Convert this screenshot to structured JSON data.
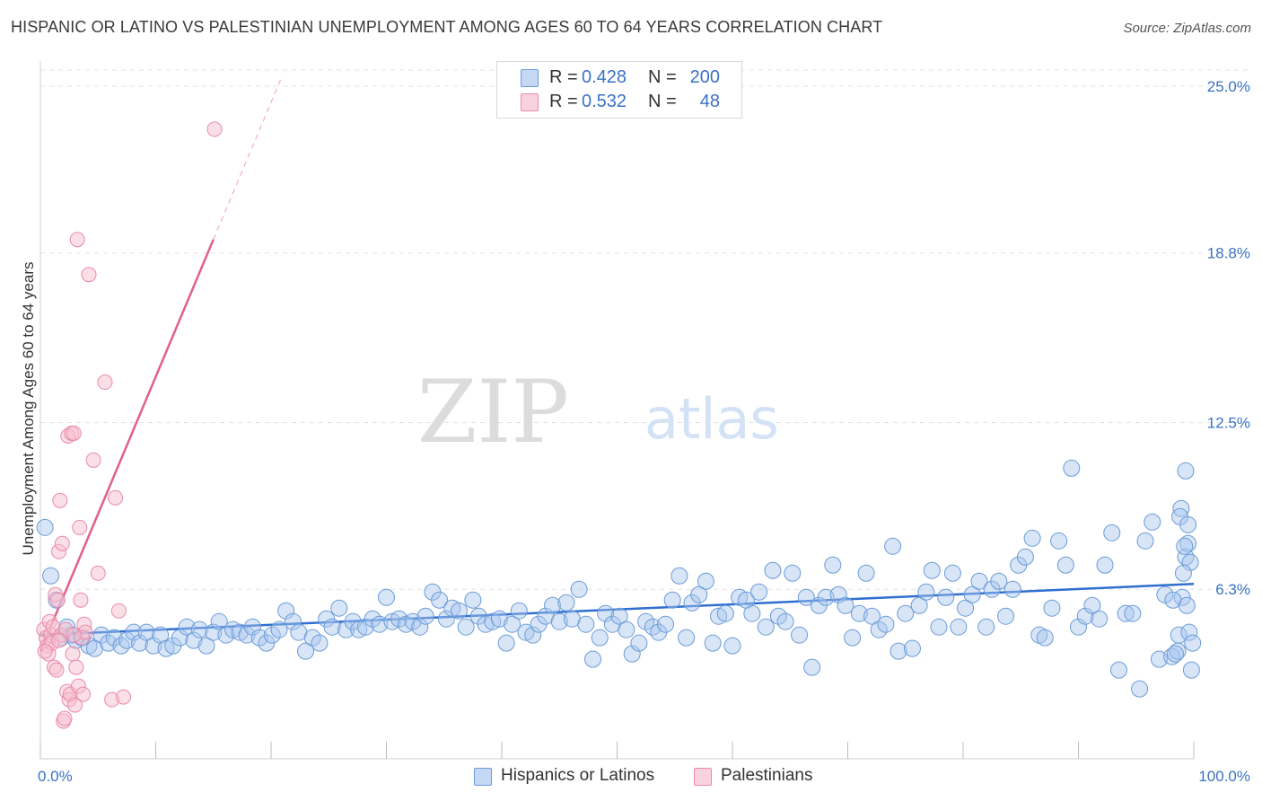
{
  "header": {
    "title": "HISPANIC OR LATINO VS PALESTINIAN UNEMPLOYMENT AMONG AGES 60 TO 64 YEARS CORRELATION CHART",
    "source": "Source: ZipAtlas.com"
  },
  "watermark": {
    "zip": "ZIP",
    "atlas": "atlas"
  },
  "legend_top": {
    "rows": [
      {
        "r_label": "R =",
        "r_value": "0.428",
        "n_label": "N =",
        "n_value": "200"
      },
      {
        "r_label": "R =",
        "r_value": "0.532",
        "n_label": "N =",
        "n_value": "48"
      }
    ]
  },
  "legend_bottom": {
    "items": [
      "Hispanics or Latinos",
      "Palestinians"
    ]
  },
  "colors": {
    "blue_fill": "#a9c6ee",
    "blue_stroke": "#6a9bd8",
    "blue_line": "#2f6fd0",
    "pink_fill": "#f6bfd0",
    "pink_stroke": "#ea8aa8",
    "pink_line": "#e0608b",
    "axis_text": "#3b72c4",
    "grid": "#e3e3e3"
  },
  "chart_data": {
    "type": "scatter",
    "title": "HISPANIC OR LATINO VS PALESTINIAN UNEMPLOYMENT AMONG AGES 60 TO 64 YEARS CORRELATION CHART",
    "xlabel": "",
    "ylabel": "Unemployment Among Ages 60 to 64 years",
    "xlim": [
      0,
      100
    ],
    "ylim": [
      0,
      25.8
    ],
    "x_tick_labels": [
      "0.0%",
      "100.0%"
    ],
    "y_ticks": [
      6.3,
      12.5,
      18.8,
      25.0
    ],
    "y_tick_labels": [
      "6.3%",
      "12.5%",
      "18.8%",
      "25.0%"
    ],
    "grid": "horizontal dashed",
    "legend": "bottom-center",
    "series": [
      {
        "name": "Hispanics or Latinos",
        "color": "#a9c6ee",
        "r": 0.428,
        "n": 200,
        "trend": {
          "x": [
            0,
            100
          ],
          "y": [
            4.6,
            6.5
          ]
        },
        "points": [
          [
            0.4,
            8.6
          ],
          [
            0.9,
            6.8
          ],
          [
            1.4,
            5.9
          ],
          [
            1.8,
            4.5
          ],
          [
            2.3,
            4.9
          ],
          [
            2.7,
            4.6
          ],
          [
            3.1,
            4.4
          ],
          [
            3.6,
            4.5
          ],
          [
            4.2,
            4.2
          ],
          [
            4.7,
            4.1
          ],
          [
            5.3,
            4.6
          ],
          [
            5.9,
            4.3
          ],
          [
            6.4,
            4.5
          ],
          [
            7.0,
            4.2
          ],
          [
            7.5,
            4.4
          ],
          [
            8.1,
            4.7
          ],
          [
            8.6,
            4.3
          ],
          [
            9.2,
            4.7
          ],
          [
            9.8,
            4.2
          ],
          [
            10.4,
            4.6
          ],
          [
            10.9,
            4.1
          ],
          [
            11.5,
            4.2
          ],
          [
            12.1,
            4.5
          ],
          [
            12.7,
            4.9
          ],
          [
            13.3,
            4.4
          ],
          [
            13.8,
            4.8
          ],
          [
            14.4,
            4.2
          ],
          [
            15.0,
            4.7
          ],
          [
            15.5,
            5.1
          ],
          [
            16.1,
            4.6
          ],
          [
            16.7,
            4.8
          ],
          [
            17.3,
            4.7
          ],
          [
            17.9,
            4.6
          ],
          [
            18.4,
            4.9
          ],
          [
            19.0,
            4.5
          ],
          [
            19.6,
            4.3
          ],
          [
            20.1,
            4.6
          ],
          [
            20.7,
            4.8
          ],
          [
            21.3,
            5.5
          ],
          [
            21.9,
            5.1
          ],
          [
            22.4,
            4.7
          ],
          [
            23.0,
            4.0
          ],
          [
            23.6,
            4.5
          ],
          [
            24.2,
            4.3
          ],
          [
            24.8,
            5.2
          ],
          [
            25.3,
            4.9
          ],
          [
            25.9,
            5.6
          ],
          [
            26.5,
            4.8
          ],
          [
            27.1,
            5.1
          ],
          [
            27.6,
            4.8
          ],
          [
            28.2,
            4.9
          ],
          [
            28.8,
            5.2
          ],
          [
            29.4,
            5.0
          ],
          [
            30.0,
            6.0
          ],
          [
            30.5,
            5.1
          ],
          [
            31.1,
            5.2
          ],
          [
            31.7,
            5.0
          ],
          [
            32.3,
            5.1
          ],
          [
            32.9,
            4.9
          ],
          [
            33.4,
            5.3
          ],
          [
            34.0,
            6.2
          ],
          [
            34.6,
            5.9
          ],
          [
            35.2,
            5.2
          ],
          [
            35.7,
            5.6
          ],
          [
            36.3,
            5.5
          ],
          [
            36.9,
            4.9
          ],
          [
            37.5,
            5.9
          ],
          [
            38.0,
            5.3
          ],
          [
            38.6,
            5.0
          ],
          [
            39.2,
            5.1
          ],
          [
            39.8,
            5.2
          ],
          [
            40.4,
            4.3
          ],
          [
            40.9,
            5.0
          ],
          [
            41.5,
            5.5
          ],
          [
            42.1,
            4.7
          ],
          [
            42.7,
            4.6
          ],
          [
            43.2,
            5.0
          ],
          [
            43.8,
            5.3
          ],
          [
            44.4,
            5.7
          ],
          [
            45.0,
            5.1
          ],
          [
            45.6,
            5.8
          ],
          [
            46.1,
            5.2
          ],
          [
            46.7,
            6.3
          ],
          [
            47.3,
            5.0
          ],
          [
            47.9,
            3.7
          ],
          [
            48.5,
            4.5
          ],
          [
            49.0,
            5.4
          ],
          [
            49.6,
            5.0
          ],
          [
            50.2,
            5.3
          ],
          [
            50.8,
            4.8
          ],
          [
            51.3,
            3.9
          ],
          [
            51.9,
            4.3
          ],
          [
            52.5,
            5.1
          ],
          [
            53.1,
            4.9
          ],
          [
            53.6,
            4.7
          ],
          [
            54.2,
            5.0
          ],
          [
            54.8,
            5.9
          ],
          [
            55.4,
            6.8
          ],
          [
            56.0,
            4.5
          ],
          [
            56.5,
            5.8
          ],
          [
            57.1,
            6.1
          ],
          [
            57.7,
            6.6
          ],
          [
            58.3,
            4.3
          ],
          [
            58.8,
            5.3
          ],
          [
            59.4,
            5.4
          ],
          [
            60.0,
            4.2
          ],
          [
            60.6,
            6.0
          ],
          [
            61.2,
            5.9
          ],
          [
            61.7,
            5.4
          ],
          [
            62.3,
            6.2
          ],
          [
            62.9,
            4.9
          ],
          [
            63.5,
            7.0
          ],
          [
            64.0,
            5.3
          ],
          [
            64.6,
            5.1
          ],
          [
            65.2,
            6.9
          ],
          [
            65.8,
            4.6
          ],
          [
            66.4,
            6.0
          ],
          [
            66.9,
            3.4
          ],
          [
            67.5,
            5.7
          ],
          [
            68.1,
            6.0
          ],
          [
            68.7,
            7.2
          ],
          [
            69.2,
            6.1
          ],
          [
            69.8,
            5.7
          ],
          [
            70.4,
            4.5
          ],
          [
            71.0,
            5.4
          ],
          [
            71.6,
            6.9
          ],
          [
            72.1,
            5.3
          ],
          [
            72.7,
            4.8
          ],
          [
            73.3,
            5.0
          ],
          [
            73.9,
            7.9
          ],
          [
            74.4,
            4.0
          ],
          [
            75.0,
            5.4
          ],
          [
            75.6,
            4.1
          ],
          [
            76.2,
            5.7
          ],
          [
            76.8,
            6.2
          ],
          [
            77.3,
            7.0
          ],
          [
            77.9,
            4.9
          ],
          [
            78.5,
            6.0
          ],
          [
            79.1,
            6.9
          ],
          [
            79.6,
            4.9
          ],
          [
            80.2,
            5.6
          ],
          [
            80.8,
            6.1
          ],
          [
            81.4,
            6.6
          ],
          [
            82.0,
            4.9
          ],
          [
            82.5,
            6.3
          ],
          [
            83.1,
            6.6
          ],
          [
            83.7,
            5.3
          ],
          [
            84.3,
            6.3
          ],
          [
            84.8,
            7.2
          ],
          [
            85.4,
            7.5
          ],
          [
            86.0,
            8.2
          ],
          [
            86.6,
            4.6
          ],
          [
            87.1,
            4.5
          ],
          [
            87.7,
            5.6
          ],
          [
            88.3,
            8.1
          ],
          [
            88.9,
            7.2
          ],
          [
            89.4,
            10.8
          ],
          [
            90.0,
            4.9
          ],
          [
            90.6,
            5.3
          ],
          [
            91.2,
            5.7
          ],
          [
            91.8,
            5.2
          ],
          [
            92.3,
            7.2
          ],
          [
            92.9,
            8.4
          ],
          [
            93.5,
            3.3
          ],
          [
            94.1,
            5.4
          ],
          [
            94.7,
            5.4
          ],
          [
            95.3,
            2.6
          ],
          [
            95.8,
            8.1
          ],
          [
            96.4,
            8.8
          ],
          [
            97.0,
            3.7
          ],
          [
            97.5,
            6.1
          ],
          [
            98.1,
            3.8
          ],
          [
            98.7,
            4.6
          ],
          [
            99.3,
            7.5
          ],
          [
            99.8,
            3.3
          ],
          [
            99.5,
            8.0
          ],
          [
            98.9,
            9.3
          ],
          [
            98.6,
            4.0
          ],
          [
            99.0,
            6.0
          ],
          [
            99.2,
            7.9
          ],
          [
            98.4,
            3.9
          ],
          [
            98.2,
            5.9
          ],
          [
            99.6,
            4.7
          ],
          [
            99.4,
            5.7
          ],
          [
            99.7,
            7.3
          ],
          [
            99.9,
            4.3
          ],
          [
            99.1,
            6.9
          ],
          [
            98.8,
            9.0
          ],
          [
            99.3,
            10.7
          ],
          [
            99.5,
            8.7
          ]
        ]
      },
      {
        "name": "Palestinians",
        "color": "#f6bfd0",
        "r": 0.532,
        "n": 48,
        "trend": {
          "x": [
            0,
            15
          ],
          "y": [
            4.0,
            19.3
          ]
        },
        "points": [
          [
            0.3,
            4.8
          ],
          [
            0.5,
            4.5
          ],
          [
            0.6,
            4.2
          ],
          [
            0.7,
            3.9
          ],
          [
            0.8,
            5.1
          ],
          [
            0.9,
            4.6
          ],
          [
            1.0,
            4.3
          ],
          [
            1.1,
            4.9
          ],
          [
            1.2,
            3.4
          ],
          [
            1.3,
            6.1
          ],
          [
            1.4,
            3.3
          ],
          [
            1.5,
            5.9
          ],
          [
            1.6,
            7.7
          ],
          [
            1.7,
            9.6
          ],
          [
            1.8,
            4.6
          ],
          [
            1.9,
            8.0
          ],
          [
            2.0,
            1.4
          ],
          [
            2.1,
            1.5
          ],
          [
            2.2,
            4.8
          ],
          [
            2.3,
            2.5
          ],
          [
            2.4,
            12.0
          ],
          [
            2.5,
            2.2
          ],
          [
            2.6,
            2.4
          ],
          [
            2.7,
            12.1
          ],
          [
            2.8,
            3.9
          ],
          [
            2.9,
            12.1
          ],
          [
            3.0,
            2.0
          ],
          [
            3.1,
            3.4
          ],
          [
            3.2,
            19.3
          ],
          [
            3.3,
            2.7
          ],
          [
            3.4,
            8.6
          ],
          [
            3.5,
            5.9
          ],
          [
            3.6,
            4.5
          ],
          [
            3.7,
            2.4
          ],
          [
            3.8,
            5.0
          ],
          [
            3.9,
            4.7
          ],
          [
            4.2,
            18.0
          ],
          [
            4.6,
            11.1
          ],
          [
            5.0,
            6.9
          ],
          [
            5.6,
            14.0
          ],
          [
            6.2,
            2.2
          ],
          [
            6.5,
            9.7
          ],
          [
            6.8,
            5.5
          ],
          [
            7.2,
            2.3
          ],
          [
            15.1,
            23.4
          ],
          [
            1.6,
            4.4
          ],
          [
            2.9,
            4.6
          ],
          [
            0.4,
            4.0
          ]
        ]
      }
    ]
  }
}
